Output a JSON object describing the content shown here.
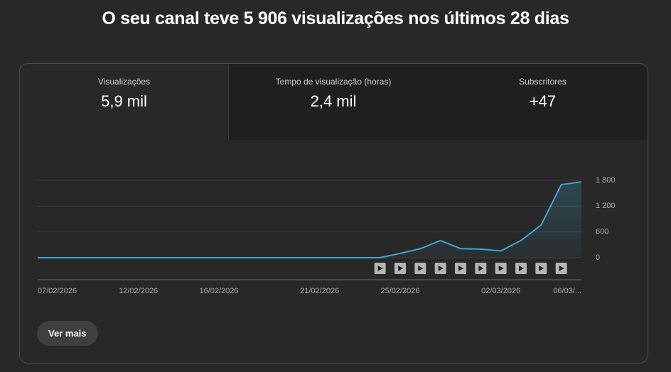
{
  "header": {
    "title": "O seu canal teve 5 906 visualizações nos últimos 28 dias"
  },
  "tabs": [
    {
      "label": "Visualizações",
      "value": "5,9 mil"
    },
    {
      "label": "Tempo de visualização (horas)",
      "value": "2,4 mil"
    },
    {
      "label": "Subscritores",
      "value": "+47"
    }
  ],
  "chart_data": {
    "type": "line",
    "categories": [
      "07/02/2026",
      null,
      null,
      null,
      null,
      "12/02/2026",
      null,
      null,
      null,
      "16/02/2026",
      null,
      null,
      null,
      null,
      "21/02/2026",
      null,
      null,
      null,
      "25/02/2026",
      null,
      null,
      null,
      null,
      "02/03/2026",
      null,
      null,
      null,
      "06/03/..."
    ],
    "series": [
      {
        "name": "Visualizações",
        "color": "#3ea6d0",
        "values": [
          0,
          0,
          0,
          0,
          0,
          0,
          0,
          0,
          0,
          0,
          0,
          0,
          0,
          0,
          0,
          0,
          0,
          0,
          100,
          210,
          400,
          210,
          200,
          160,
          400,
          760,
          1700,
          1766
        ]
      }
    ],
    "ylim": [
      0,
      1800
    ],
    "yticks": [
      0,
      600,
      {
        "value": 1200,
        "label": "1 200"
      },
      {
        "value": 1800,
        "label": "1 800"
      }
    ],
    "grid": true
  },
  "button": {
    "label": "Ver mais"
  }
}
